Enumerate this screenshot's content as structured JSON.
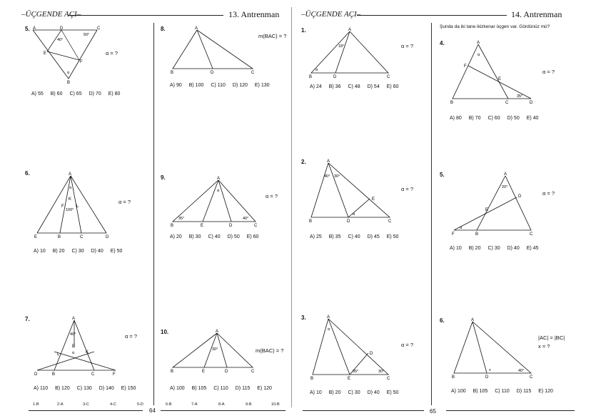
{
  "left_page": {
    "header_title": "ÜÇGENDE AÇI",
    "header_section": "13. Antrenman",
    "page_number": "64",
    "answer_key": [
      "1-B",
      "2-A",
      "3-C",
      "4-C",
      "5-D",
      "6-B",
      "7-A",
      "8-A",
      "9-B",
      "10-B"
    ]
  },
  "right_page": {
    "header_title": "ÜÇGENDE AÇI",
    "header_section": "14. Antrenman",
    "page_number": "65",
    "intro_note": "Şunda da iki tane ikizkenar üçgen var. Gördünüz mü?"
  },
  "questions": {
    "q5l": {
      "num": "5.",
      "ask": "α = ?",
      "choices": [
        "A) 55",
        "B) 60",
        "C) 65",
        "D) 70",
        "E) 80"
      ],
      "labels": {
        "A": "A",
        "B": "B",
        "C": "C",
        "D": "D",
        "E": "E",
        "F": "F",
        "a40": "40°",
        "a50": "50°",
        "alpha": "α"
      }
    },
    "q6l": {
      "num": "6.",
      "ask": "α = ?",
      "choices": [
        "A) 10",
        "B) 20",
        "C) 30",
        "D) 40",
        "E) 50"
      ],
      "labels": {
        "A": "A",
        "B": "B",
        "C": "C",
        "D": "D",
        "E": "E",
        "F": "F",
        "K": "K",
        "L": "L",
        "a100": "100°",
        "alpha": "α"
      }
    },
    "q7l": {
      "num": "7.",
      "ask": "α = ?",
      "choices": [
        "A) 110",
        "B) 120",
        "C) 130",
        "D) 140",
        "E) 150"
      ],
      "labels": {
        "A": "A",
        "B": "B",
        "C": "C",
        "D": "D",
        "E": "E",
        "F": "F",
        "K": "K",
        "L": "L",
        "a40": "40°",
        "alpha": "α"
      }
    },
    "q8l": {
      "num": "8.",
      "ask": "m(BAC) = ?",
      "choices": [
        "A) 90",
        "B) 100",
        "C) 110",
        "D) 120",
        "E) 130"
      ],
      "labels": {
        "A": "A",
        "B": "B",
        "C": "C",
        "D": "D"
      }
    },
    "q9l": {
      "num": "9.",
      "ask": "α = ?",
      "choices": [
        "A) 20",
        "B) 30",
        "C) 40",
        "D) 50",
        "E) 60"
      ],
      "labels": {
        "A": "A",
        "B": "B",
        "C": "C",
        "D": "D",
        "E": "E",
        "a35": "35°",
        "a40": "40°",
        "alpha": "α"
      }
    },
    "q10l": {
      "num": "10.",
      "ask": "m(BAC) = ?",
      "choices": [
        "A) 100",
        "B) 105",
        "C) 110",
        "D) 115",
        "E) 120"
      ],
      "labels": {
        "A": "A",
        "B": "B",
        "C": "C",
        "D": "D",
        "E": "E",
        "a30": "30°"
      }
    },
    "q1r": {
      "num": "1.",
      "ask": "α = ?",
      "choices": [
        "A) 24",
        "B) 36",
        "C) 48",
        "D) 54",
        "E) 60"
      ],
      "labels": {
        "A": "A",
        "B": "B",
        "C": "C",
        "D": "D",
        "a18": "18°",
        "alpha": "α"
      }
    },
    "q2r": {
      "num": "2.",
      "ask": "α = ?",
      "choices": [
        "A) 25",
        "B) 35",
        "C) 40",
        "D) 45",
        "E) 50"
      ],
      "labels": {
        "A": "A",
        "B": "B",
        "C": "C",
        "D": "D",
        "E": "E",
        "a40": "40°",
        "a30": "30°",
        "alpha": "α"
      }
    },
    "q3r": {
      "num": "3.",
      "ask": "α = ?",
      "choices": [
        "A) 10",
        "B) 20",
        "C) 30",
        "D) 40",
        "E) 50"
      ],
      "labels": {
        "A": "A",
        "B": "B",
        "C": "C",
        "D": "D",
        "E": "E",
        "a35": "35°",
        "a30": "30°",
        "alpha": "α"
      }
    },
    "q4r": {
      "num": "4.",
      "ask": "α = ?",
      "choices": [
        "A) 80",
        "B) 70",
        "C) 60",
        "D) 50",
        "E) 40"
      ],
      "labels": {
        "A": "A",
        "B": "B",
        "C": "C",
        "D": "D",
        "E": "E",
        "F": "F",
        "a35": "35°",
        "alpha": "α"
      }
    },
    "q5r": {
      "num": "5.",
      "ask": "α = ?",
      "choices": [
        "A) 10",
        "B) 20",
        "C) 30",
        "D) 40",
        "E) 45"
      ],
      "labels": {
        "A": "A",
        "B": "B",
        "C": "C",
        "D": "D",
        "E": "E",
        "F": "F",
        "a20": "20°",
        "alpha": "α"
      }
    },
    "q6r": {
      "num": "6.",
      "ask": "|AC| = |BC|",
      "ask2": "x = ?",
      "choices": [
        "A) 100",
        "B) 105",
        "C) 110",
        "D) 115",
        "E) 120"
      ],
      "labels": {
        "A": "A",
        "B": "B",
        "C": "C",
        "D": "D",
        "a40": "40°",
        "x": "x"
      }
    }
  }
}
